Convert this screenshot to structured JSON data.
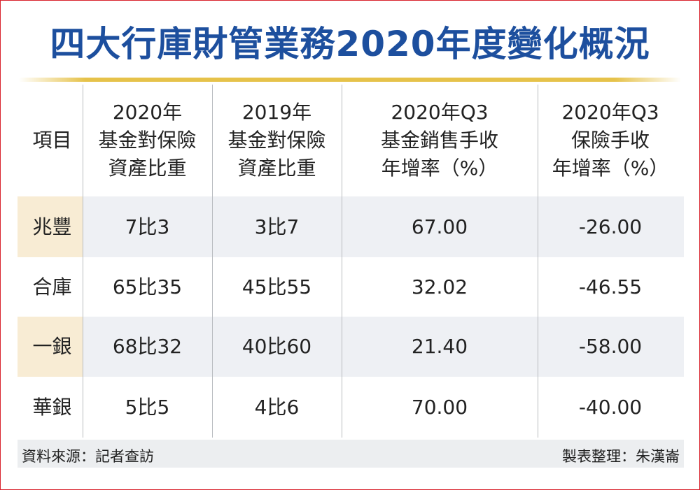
{
  "header": {
    "title": "四大行庫財管業務2020年度變化概況"
  },
  "table": {
    "headers": [
      [
        "項目"
      ],
      [
        "2020年",
        "基金對保險",
        "資產比重"
      ],
      [
        "2019年",
        "基金對保險",
        "資產比重"
      ],
      [
        "2020年Q3",
        "基金銷售手收",
        "年增率（%）"
      ],
      [
        "2020年Q3",
        "保險手收",
        "年增率（%）"
      ]
    ],
    "rows": [
      [
        "兆豐",
        "7比3",
        "3比7",
        "67.00",
        "-26.00"
      ],
      [
        "合庫",
        "65比35",
        "45比55",
        "32.02",
        "-46.55"
      ],
      [
        "一銀",
        "68比32",
        "40比60",
        "21.40",
        "-58.00"
      ],
      [
        "華銀",
        "5比5",
        "4比6",
        "70.00",
        "-40.00"
      ]
    ]
  },
  "footer": {
    "source": "資料來源：記者查訪",
    "credit": "製表整理：朱漢崙"
  }
}
